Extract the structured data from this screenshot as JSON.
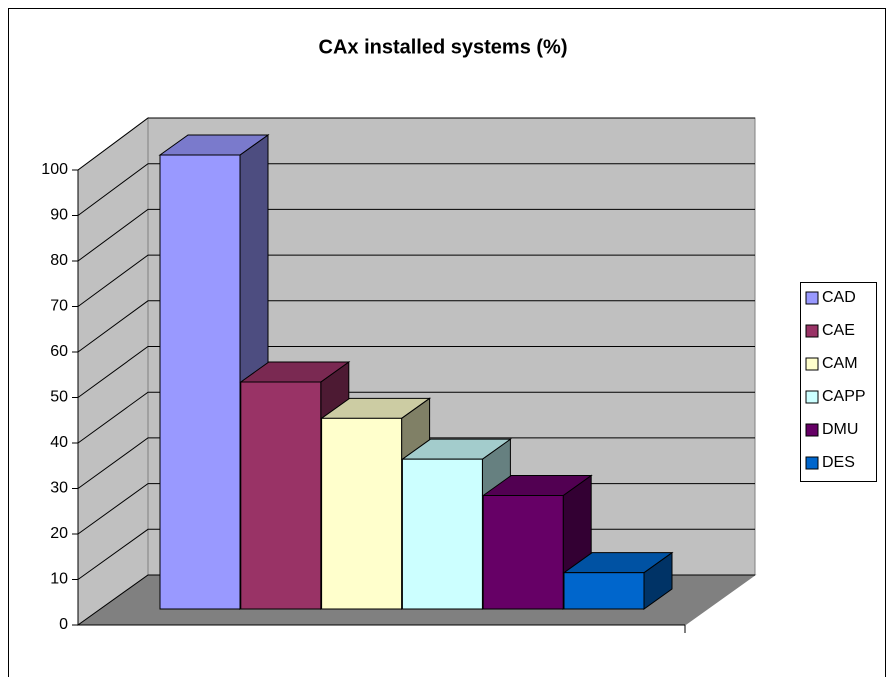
{
  "chart_data": {
    "type": "bar3d",
    "title": "CAx installed systems (%)",
    "categories": [
      "CAD",
      "CAE",
      "CAM",
      "CAPP",
      "DMU",
      "DES"
    ],
    "values": [
      100,
      50,
      42,
      33,
      25,
      8
    ],
    "colors": [
      "#9999ff",
      "#993366",
      "#ffffcc",
      "#ccffff",
      "#660066",
      "#0066cc"
    ],
    "ylim": [
      0,
      100
    ],
    "yticks": [
      0,
      10,
      20,
      30,
      40,
      50,
      60,
      70,
      80,
      90,
      100
    ],
    "grid": true,
    "legend": "right"
  }
}
